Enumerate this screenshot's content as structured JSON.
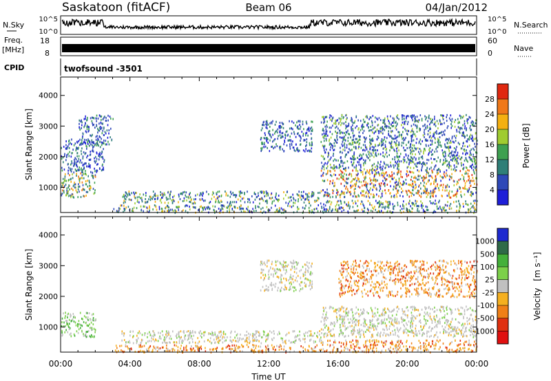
{
  "header": {
    "station": "Saskatoon (fitACF)",
    "beam": "Beam 06",
    "date": "04/Jan/2012"
  },
  "top_panels": {
    "nsky_label": "N.Sky",
    "nsky_ticks": [
      "10^5",
      "10^0"
    ],
    "nsearch_label": "N.Search",
    "nsearch_ticks": [
      "10^5",
      "10^0"
    ],
    "freq_label_1": "Freq.",
    "freq_label_2": "[MHz]",
    "freq_ticks": [
      "18",
      "8"
    ],
    "nave_label": "Nave",
    "nave_ticks": [
      "60",
      "0"
    ],
    "cpid_label": "CPID",
    "cpid_value": "twofsound -3501"
  },
  "chart_data": [
    {
      "type": "heatmap",
      "name": "power",
      "ylabel": "Slant Range [km]",
      "xlabel": "",
      "xlim": [
        0,
        24
      ],
      "ylim": [
        180,
        4600
      ],
      "yticks": [
        "1000",
        "2000",
        "3000",
        "4000"
      ],
      "xticks": [
        "00:00",
        "04:00",
        "08:00",
        "12:00",
        "16:00",
        "20:00",
        "00:00"
      ],
      "colorbar": {
        "label": "Power [dB]",
        "ticks": [
          "4",
          "8",
          "12",
          "16",
          "20",
          "24",
          "28"
        ],
        "colors": [
          "#1e1ed8",
          "#2e48b8",
          "#2f7f78",
          "#3ea050",
          "#a0cc30",
          "#f5b010",
          "#f07818",
          "#e02810"
        ]
      },
      "regions": [
        {
          "t": [
            0,
            2
          ],
          "r": [
            700,
            1500
          ],
          "level": "mixed-high"
        },
        {
          "t": [
            0,
            2.5
          ],
          "r": [
            1500,
            2600
          ],
          "level": "low"
        },
        {
          "t": [
            1,
            3
          ],
          "r": [
            2400,
            3400
          ],
          "level": "low"
        },
        {
          "t": [
            3.5,
            15
          ],
          "r": [
            500,
            900
          ],
          "level": "mixed"
        },
        {
          "t": [
            3,
            15
          ],
          "r": [
            200,
            450
          ],
          "level": "mixed"
        },
        {
          "t": [
            11.5,
            14.5
          ],
          "r": [
            2200,
            3200
          ],
          "level": "low"
        },
        {
          "t": [
            15,
            24
          ],
          "r": [
            700,
            1600
          ],
          "level": "high"
        },
        {
          "t": [
            15,
            24
          ],
          "r": [
            1600,
            3400
          ],
          "level": "low-mixed"
        },
        {
          "t": [
            15,
            24
          ],
          "r": [
            200,
            600
          ],
          "level": "mixed"
        }
      ]
    },
    {
      "type": "heatmap",
      "name": "velocity",
      "ylabel": "Slant Range [km]",
      "xlabel": "Time UT",
      "xlim": [
        0,
        24
      ],
      "ylim": [
        180,
        4600
      ],
      "yticks": [
        "1000",
        "2000",
        "3000",
        "4000"
      ],
      "xticks": [
        "00:00",
        "04:00",
        "08:00",
        "12:00",
        "16:00",
        "20:00",
        "00:00"
      ],
      "colorbar": {
        "label": "Velocity",
        "label_unit": "[m s⁻¹]",
        "ticks": [
          "1000",
          "500",
          "100",
          "25",
          "-25",
          "-100",
          "-500",
          "-1000"
        ],
        "colors": [
          "#1e2ad0",
          "#2f6a48",
          "#44b03a",
          "#7cd04a",
          "#c0c0c0",
          "#f5b020",
          "#f08018",
          "#e03010",
          "#e01010"
        ]
      },
      "regions": [
        {
          "t": [
            0,
            2
          ],
          "r": [
            700,
            1500
          ],
          "level": "green-gray"
        },
        {
          "t": [
            3.5,
            15
          ],
          "r": [
            500,
            900
          ],
          "level": "gray"
        },
        {
          "t": [
            3,
            15
          ],
          "r": [
            200,
            450
          ],
          "level": "orange"
        },
        {
          "t": [
            11.5,
            14.5
          ],
          "r": [
            2200,
            3200
          ],
          "level": "gray"
        },
        {
          "t": [
            15,
            24
          ],
          "r": [
            700,
            1700
          ],
          "level": "gray"
        },
        {
          "t": [
            16,
            24
          ],
          "r": [
            2000,
            3200
          ],
          "level": "orange"
        },
        {
          "t": [
            15,
            24
          ],
          "r": [
            200,
            600
          ],
          "level": "orange"
        }
      ]
    }
  ]
}
